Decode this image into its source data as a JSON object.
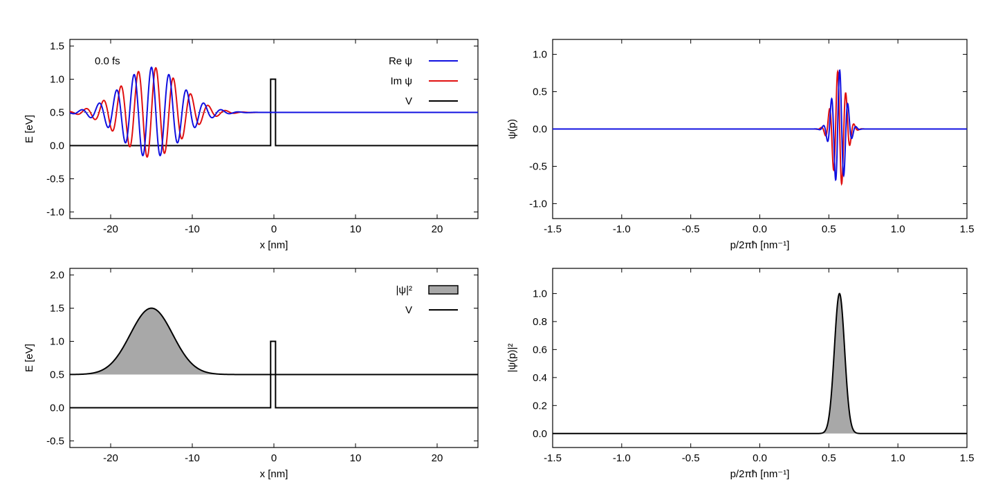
{
  "time_label": "0.0 fs",
  "colors": {
    "re": "#1010e0",
    "im": "#e01010",
    "v": "#000000",
    "density_fill": "#a8a8a8"
  },
  "chart_data": [
    {
      "id": "wave-x",
      "type": "line",
      "title": "",
      "xlabel": "x [nm]",
      "ylabel": "E [eV]",
      "xlim": [
        -25,
        25
      ],
      "ylim": [
        -1.1,
        1.6
      ],
      "xticks": [
        -20,
        -10,
        0,
        10,
        20
      ],
      "yticks": [
        -1.0,
        -0.5,
        0.0,
        0.5,
        1.0,
        1.5
      ],
      "xtick_labels": [
        "-20",
        "-10",
        "0",
        "10",
        "20"
      ],
      "ytick_labels": [
        "-1.0",
        "-0.5",
        "0.0",
        "0.5",
        "1.0",
        "1.5"
      ],
      "legend": {
        "position": "top-right",
        "entries": [
          {
            "label": "Re ψ",
            "series": "re"
          },
          {
            "label": "Im ψ",
            "series": "im"
          },
          {
            "label": "V",
            "series": "v"
          }
        ]
      },
      "wavepacket": {
        "baseline": 0.5,
        "center": -15,
        "sigma": 3.6,
        "amplitude": 0.68,
        "wavelength": 2.14
      },
      "potential": {
        "x": [
          -25,
          -0.4,
          -0.4,
          0.2,
          0.2,
          25
        ],
        "y": [
          0,
          0,
          1.0,
          1.0,
          0,
          0
        ]
      }
    },
    {
      "id": "wave-p",
      "type": "line",
      "title": "",
      "xlabel": "p/2πħ [nm⁻¹]",
      "ylabel": "ψ(p)",
      "xlim": [
        -1.5,
        1.5
      ],
      "ylim": [
        -1.2,
        1.2
      ],
      "xticks": [
        -1.5,
        -1.0,
        -0.5,
        0.0,
        0.5,
        1.0,
        1.5
      ],
      "yticks": [
        -1.0,
        -0.5,
        0.0,
        0.5,
        1.0
      ],
      "xtick_labels": [
        "-1.5",
        "-1.0",
        "-0.5",
        "0.0",
        "0.5",
        "1.0",
        "1.5"
      ],
      "ytick_labels": [
        "-1.0",
        "-0.5",
        "0.0",
        "0.5",
        "1.0"
      ],
      "momentum_packet": {
        "center": 0.575,
        "sigma": 0.048,
        "amplitude": 0.79,
        "period": 0.06
      }
    },
    {
      "id": "density-x",
      "type": "area",
      "title": "",
      "xlabel": "x [nm]",
      "ylabel": "E [eV]",
      "xlim": [
        -25,
        25
      ],
      "ylim": [
        -0.6,
        2.1
      ],
      "xticks": [
        -20,
        -10,
        0,
        10,
        20
      ],
      "yticks": [
        -0.5,
        0.0,
        0.5,
        1.0,
        1.5,
        2.0
      ],
      "xtick_labels": [
        "-20",
        "-10",
        "0",
        "10",
        "20"
      ],
      "ytick_labels": [
        "-0.5",
        "0.0",
        "0.5",
        "1.0",
        "1.5",
        "2.0"
      ],
      "legend": {
        "position": "top-right",
        "entries": [
          {
            "label": "|ψ|²",
            "series": "density"
          },
          {
            "label": "V",
            "series": "v"
          }
        ]
      },
      "density": {
        "baseline": 0.5,
        "center": -15,
        "sigma": 2.6,
        "peak": 1.0
      },
      "potential": {
        "x": [
          -25,
          -0.4,
          -0.4,
          0.2,
          0.2,
          25
        ],
        "y": [
          0,
          0,
          1.0,
          1.0,
          0,
          0
        ]
      }
    },
    {
      "id": "density-p",
      "type": "area",
      "title": "",
      "xlabel": "p/2πħ [nm⁻¹]",
      "ylabel": "|ψ(p)|²",
      "xlim": [
        -1.5,
        1.5
      ],
      "ylim": [
        -0.1,
        1.18
      ],
      "xticks": [
        -1.5,
        -1.0,
        -0.5,
        0.0,
        0.5,
        1.0,
        1.5
      ],
      "yticks": [
        0.0,
        0.2,
        0.4,
        0.6,
        0.8,
        1.0
      ],
      "xtick_labels": [
        "-1.5",
        "-1.0",
        "-0.5",
        "0.0",
        "0.5",
        "1.0",
        "1.5"
      ],
      "ytick_labels": [
        "0.0",
        "0.2",
        "0.4",
        "0.6",
        "0.8",
        "1.0"
      ],
      "density": {
        "center": 0.577,
        "sigma": 0.037,
        "peak": 1.0
      }
    }
  ]
}
